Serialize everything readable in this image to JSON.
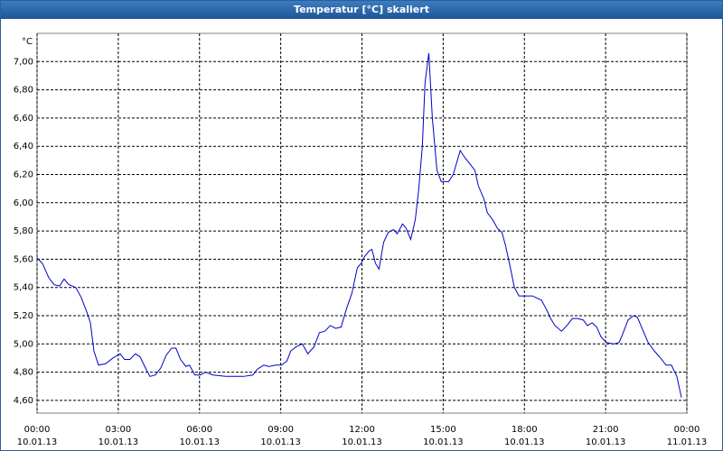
{
  "chart_data": {
    "type": "line",
    "title": "Temperatur [°C] skaliert",
    "y_label": "°C",
    "xlim": [
      0,
      24
    ],
    "ylim": [
      4.51,
      7.2
    ],
    "xticks": [
      {
        "value": 0,
        "label": "00:00",
        "date": "10.01.13"
      },
      {
        "value": 3,
        "label": "03:00",
        "date": "10.01.13"
      },
      {
        "value": 6,
        "label": "06:00",
        "date": "10.01.13"
      },
      {
        "value": 9,
        "label": "09:00",
        "date": "10.01.13"
      },
      {
        "value": 12,
        "label": "12:00",
        "date": "10.01.13"
      },
      {
        "value": 15,
        "label": "15:00",
        "date": "10.01.13"
      },
      {
        "value": 18,
        "label": "18:00",
        "date": "10.01.13"
      },
      {
        "value": 21,
        "label": "21:00",
        "date": "10.01.13"
      },
      {
        "value": 24,
        "label": "00:00",
        "date": "11.01.13"
      }
    ],
    "yticks": [
      {
        "value": 4.6,
        "label": "4,60"
      },
      {
        "value": 4.8,
        "label": "4,80"
      },
      {
        "value": 5.0,
        "label": "5,00"
      },
      {
        "value": 5.2,
        "label": "5,20"
      },
      {
        "value": 5.4,
        "label": "5,40"
      },
      {
        "value": 5.6,
        "label": "5,60"
      },
      {
        "value": 5.8,
        "label": "5,80"
      },
      {
        "value": 6.0,
        "label": "6,00"
      },
      {
        "value": 6.2,
        "label": "6,20"
      },
      {
        "value": 6.4,
        "label": "6,40"
      },
      {
        "value": 6.6,
        "label": "6,60"
      },
      {
        "value": 6.8,
        "label": "6,80"
      },
      {
        "value": 7.0,
        "label": "7,00"
      }
    ],
    "grid": true,
    "color": "#0000c8",
    "x": [
      0,
      0.2,
      0.43,
      0.63,
      0.83,
      1,
      1.17,
      1.43,
      1.63,
      1.83,
      1.97,
      2.1,
      2.27,
      2.53,
      2.8,
      3.07,
      3.23,
      3.43,
      3.63,
      3.8,
      4.03,
      4.17,
      4.37,
      4.57,
      4.77,
      4.97,
      5.13,
      5.3,
      5.5,
      5.63,
      5.83,
      6.03,
      6.23,
      6.5,
      6.97,
      7.3,
      7.63,
      7.97,
      8.13,
      8.37,
      8.57,
      8.8,
      9.03,
      9.23,
      9.37,
      9.57,
      9.8,
      10,
      10.23,
      10.43,
      10.63,
      10.83,
      11.03,
      11.23,
      11.43,
      11.63,
      11.83,
      11.97,
      12.1,
      12.27,
      12.37,
      12.5,
      12.63,
      12.8,
      12.97,
      13.17,
      13.3,
      13.5,
      13.63,
      13.8,
      13.97,
      14.1,
      14.23,
      14.33,
      14.47,
      14.6,
      14.77,
      14.93,
      15.2,
      15.37,
      15.63,
      15.8,
      15.97,
      16.17,
      16.3,
      16.5,
      16.63,
      16.83,
      17,
      17.17,
      17.3,
      17.47,
      17.63,
      17.8,
      17.97,
      18.3,
      18.63,
      18.8,
      18.97,
      19.13,
      19.37,
      19.57,
      19.77,
      19.97,
      20.17,
      20.33,
      20.5,
      20.67,
      20.83,
      21.03,
      21.3,
      21.5,
      21.63,
      21.83,
      22.03,
      22.17,
      22.37,
      22.57,
      22.8,
      23.03,
      23.23,
      23.43,
      23.63,
      23.8
    ],
    "values": [
      5.61,
      5.57,
      5.47,
      5.42,
      5.41,
      5.46,
      5.42,
      5.4,
      5.33,
      5.23,
      5.15,
      4.95,
      4.85,
      4.86,
      4.9,
      4.93,
      4.89,
      4.89,
      4.93,
      4.91,
      4.82,
      4.77,
      4.78,
      4.83,
      4.92,
      4.97,
      4.97,
      4.89,
      4.84,
      4.85,
      4.78,
      4.78,
      4.8,
      4.78,
      4.77,
      4.77,
      4.77,
      4.78,
      4.82,
      4.85,
      4.84,
      4.85,
      4.85,
      4.88,
      4.95,
      4.98,
      5.0,
      4.93,
      4.98,
      5.08,
      5.09,
      5.13,
      5.11,
      5.12,
      5.25,
      5.36,
      5.54,
      5.57,
      5.62,
      5.66,
      5.67,
      5.57,
      5.53,
      5.72,
      5.79,
      5.81,
      5.78,
      5.85,
      5.82,
      5.74,
      5.88,
      6.1,
      6.4,
      6.85,
      7.06,
      6.6,
      6.23,
      6.15,
      6.15,
      6.2,
      6.37,
      6.32,
      6.28,
      6.23,
      6.12,
      6.03,
      5.93,
      5.88,
      5.82,
      5.79,
      5.7,
      5.55,
      5.4,
      5.34,
      5.34,
      5.34,
      5.31,
      5.25,
      5.18,
      5.13,
      5.09,
      5.13,
      5.18,
      5.18,
      5.17,
      5.13,
      5.15,
      5.12,
      5.05,
      5.01,
      5.0,
      5.01,
      5.07,
      5.17,
      5.2,
      5.19,
      5.1,
      5.01,
      4.95,
      4.9,
      4.85,
      4.85,
      4.77,
      4.62
    ]
  }
}
